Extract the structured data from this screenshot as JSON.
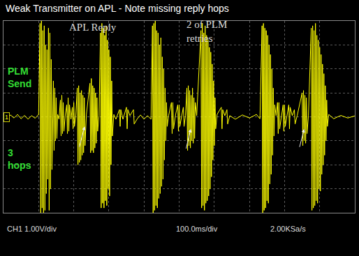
{
  "chart_data": {
    "type": "line",
    "title": "Weak Transmitter on APL - Note missing reply hops",
    "annotations": [
      "APL Reply",
      "2 of PLM\nretries",
      "PLM\nSend",
      "3\nhops",
      "1",
      "CH1 1.00V/div",
      "100.0ms/div",
      "2.00KSa/s"
    ],
    "color": "#ffff00",
    "grid": true,
    "tick_labels": false,
    "xlim": [
      0,
      1000
    ],
    "ylim": [
      -4,
      4
    ],
    "xticks": [
      0,
      100,
      200,
      300,
      400,
      500,
      600,
      700,
      800,
      900,
      1000
    ],
    "yticks": [
      -4,
      -3,
      -2,
      -1,
      0,
      1,
      2,
      3,
      4
    ],
    "x": [
      0,
      10,
      20,
      30,
      40,
      50,
      60,
      70,
      80,
      90,
      100,
      104,
      106,
      108,
      110,
      112,
      114,
      116,
      118,
      120,
      122,
      124,
      126,
      128,
      130,
      132,
      134,
      136,
      138,
      140,
      142,
      144,
      146,
      148,
      150,
      152,
      154,
      158,
      162,
      164,
      166,
      168,
      170,
      172,
      176,
      180,
      182,
      184,
      186,
      188,
      192,
      196,
      198,
      200,
      202,
      206,
      210,
      212,
      214,
      216,
      218,
      220,
      222,
      224,
      226,
      228,
      230,
      232,
      236,
      246,
      248,
      250,
      252,
      254,
      256,
      258,
      260,
      262,
      264,
      266,
      268,
      272,
      276,
      278,
      280,
      282,
      284,
      286,
      288,
      290,
      292,
      294,
      296,
      298,
      300,
      302,
      304,
      306,
      308,
      310,
      314,
      320,
      330,
      332,
      334,
      340,
      350,
      352,
      354,
      360,
      370,
      372,
      380,
      390,
      400,
      410,
      420,
      424,
      426,
      428,
      430,
      432,
      434,
      436,
      438,
      440,
      442,
      444,
      446,
      448,
      450,
      452,
      454,
      456,
      458,
      460,
      462,
      464,
      466,
      470,
      478,
      480,
      482,
      484,
      490,
      496,
      498,
      500,
      502,
      508,
      512,
      514,
      518,
      522,
      524,
      526,
      528,
      530,
      532,
      534,
      536,
      538,
      540,
      542,
      544,
      546,
      550,
      562,
      564,
      566,
      568,
      570,
      572,
      574,
      576,
      578,
      580,
      582,
      584,
      586,
      588,
      590,
      592,
      594,
      596,
      598,
      600,
      602,
      604,
      608,
      620,
      622,
      624,
      630,
      636,
      638,
      644,
      660,
      680,
      700,
      720,
      730,
      736,
      738,
      740,
      742,
      744,
      746,
      748,
      750,
      752,
      754,
      756,
      758,
      760,
      762,
      764,
      766,
      768,
      770,
      772,
      776,
      780,
      782,
      784,
      786,
      792,
      796,
      798,
      800,
      802,
      808,
      812,
      814,
      816,
      822,
      828,
      830,
      836,
      850,
      852,
      854,
      856,
      858,
      860,
      862,
      864,
      868,
      876,
      878,
      880,
      882,
      884,
      886,
      888,
      890,
      892,
      894,
      896,
      898,
      900,
      902,
      904,
      906,
      908,
      910,
      912,
      914,
      916,
      918,
      920,
      922,
      926,
      940,
      960,
      980,
      1000
    ],
    "values": [
      0.05,
      -0.1,
      0.08,
      -0.05,
      0.1,
      -0.08,
      0.06,
      -0.1,
      0.05,
      -0.06,
      0.1,
      3.9,
      -4.0,
      4.0,
      -3.8,
      3.6,
      -4.0,
      3.8,
      -3.9,
      3.0,
      -3.2,
      2.8,
      -2.6,
      3.7,
      -3.9,
      3.5,
      -3.0,
      2.4,
      -2.2,
      0.3,
      1.5,
      -1.4,
      1.2,
      -1.0,
      0.8,
      -0.9,
      0.1,
      -0.1,
      0.7,
      -0.8,
      0.9,
      -0.7,
      0.6,
      -0.6,
      0.1,
      0.5,
      -0.7,
      0.8,
      -0.6,
      0.5,
      -0.1,
      0.4,
      -0.5,
      0.6,
      -0.4,
      0.1,
      1.2,
      -2.0,
      1.3,
      -1.9,
      1.0,
      -1.8,
      1.1,
      -1.6,
      0.9,
      -1.5,
      0.8,
      -1.2,
      0.1,
      1.4,
      -1.5,
      1.6,
      -1.4,
      1.3,
      -1.5,
      1.2,
      -1.3,
      1.0,
      -1.1,
      0.8,
      -0.6,
      0.05,
      3.5,
      -3.8,
      3.9,
      -3.6,
      3.7,
      -3.8,
      3.4,
      -3.5,
      3.8,
      -3.7,
      3.2,
      -3.0,
      2.8,
      -3.3,
      2.5,
      -2.0,
      1.5,
      -0.8,
      0.1,
      -0.1,
      0.3,
      -0.4,
      0.3,
      -0.1,
      0.4,
      -0.5,
      0.3,
      0.05,
      0.3,
      -0.3,
      -0.1,
      0.08,
      -0.1,
      0.05,
      -0.1,
      3.8,
      -4.0,
      3.9,
      -3.9,
      4.0,
      -3.7,
      3.6,
      -3.8,
      3.5,
      -3.4,
      3.0,
      -3.2,
      3.3,
      -2.9,
      2.5,
      -2.6,
      2.0,
      -1.8,
      1.2,
      -1.0,
      0.6,
      -0.4,
      0.05,
      0.6,
      -0.7,
      0.6,
      -0.5,
      0.1,
      0.5,
      -0.6,
      0.5,
      -0.4,
      0.1,
      0.4,
      -0.4,
      0.05,
      1.2,
      -1.4,
      1.3,
      -1.2,
      1.1,
      -1.3,
      0.9,
      -1.0,
      1.2,
      -1.1,
      0.8,
      -0.9,
      0.6,
      0.05,
      3.6,
      -3.8,
      3.9,
      -3.7,
      3.5,
      -3.9,
      3.8,
      -3.6,
      3.4,
      -3.5,
      3.2,
      -3.3,
      2.9,
      -3.0,
      2.7,
      -2.5,
      2.2,
      -1.8,
      1.5,
      -1.2,
      0.8,
      -0.5,
      0.1,
      0.4,
      -0.5,
      0.3,
      0.05,
      0.3,
      -0.3,
      0.05,
      -0.1,
      0.08,
      -0.05,
      0.1,
      -0.08,
      3.8,
      -4.0,
      3.9,
      -3.9,
      3.7,
      -3.8,
      3.6,
      -3.5,
      3.4,
      -3.6,
      3.0,
      -2.8,
      2.6,
      -2.4,
      2.0,
      -1.6,
      1.2,
      -0.8,
      0.5,
      0.05,
      0.6,
      -0.7,
      0.6,
      -0.5,
      0.1,
      0.5,
      -0.6,
      0.5,
      -0.4,
      0.1,
      0.5,
      -0.5,
      0.4,
      0.05,
      0.3,
      -0.3,
      0.05,
      1.0,
      -1.2,
      1.1,
      -1.0,
      0.9,
      -1.1,
      0.8,
      -0.7,
      0.05,
      3.7,
      -3.9,
      3.8,
      -3.8,
      3.6,
      -3.7,
      3.9,
      -3.5,
      3.4,
      -3.6,
      3.2,
      -3.0,
      2.9,
      -3.1,
      2.6,
      -2.4,
      2.2,
      -2.0,
      1.8,
      -1.6,
      1.3,
      -1.0,
      0.7,
      -0.4,
      0.1,
      -0.08,
      0.06,
      -0.05,
      0.04
    ]
  }
}
